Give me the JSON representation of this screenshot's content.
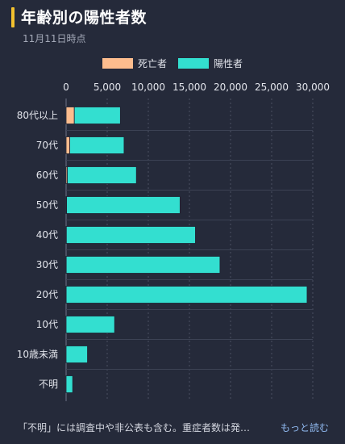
{
  "header": {
    "title": "年齢別の陽性者数",
    "subtitle": "11月11日時点"
  },
  "footer": {
    "note": "「不明」には調査中や非公表も含む。重症者数は発…",
    "more_label": "もっと読む"
  },
  "colors": {
    "deaths": "#fdbd8e",
    "positive": "#33dfd0",
    "accent": "#f2c12e"
  },
  "chart_data": {
    "type": "bar",
    "orientation": "horizontal",
    "stacked": true,
    "categories": [
      "80代以上",
      "70代",
      "60代",
      "50代",
      "40代",
      "30代",
      "20代",
      "10代",
      "10歳未満",
      "不明"
    ],
    "series": [
      {
        "name": "死亡者",
        "values": [
          1000,
          450,
          150,
          60,
          30,
          15,
          10,
          0,
          0,
          0
        ]
      },
      {
        "name": "陽性者",
        "values": [
          5600,
          6600,
          8400,
          13800,
          15700,
          18700,
          29300,
          5900,
          2600,
          800
        ]
      }
    ],
    "xlim": [
      0,
      30000
    ],
    "xticks": [
      0,
      5000,
      10000,
      15000,
      20000,
      25000,
      30000
    ],
    "xtick_labels": [
      "0",
      "5,000",
      "10,000",
      "15,000",
      "20,000",
      "25,000",
      "30,000"
    ],
    "grid": true,
    "legend_position": "top"
  }
}
